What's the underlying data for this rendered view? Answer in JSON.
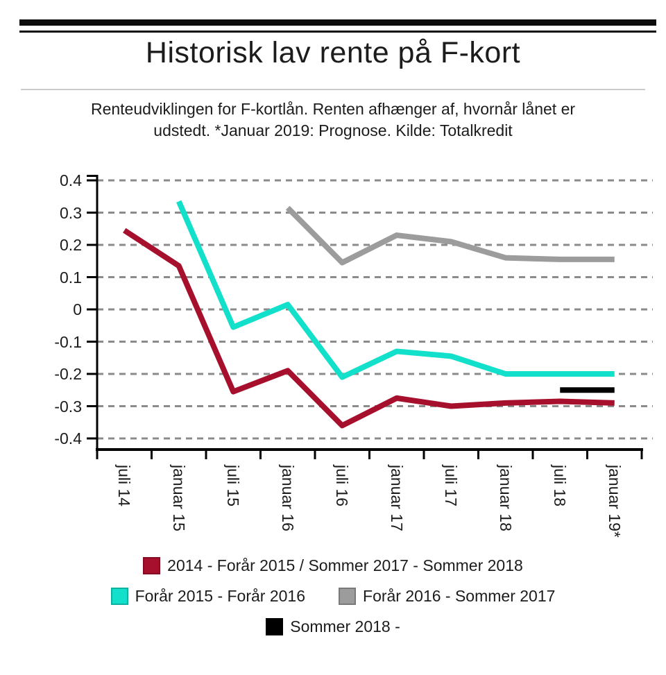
{
  "header": {
    "title": "Historisk lav rente på F-kort",
    "subtitle_line1": "Renteudviklingen for F-kortlån. Renten afhænger af, hvornår lånet er",
    "subtitle_line2": "udstedt. *Januar 2019: Prognose. Kilde: Totalkredit"
  },
  "chart_data": {
    "type": "line",
    "title": "Historisk lav rente på F-kort",
    "categories": [
      "juli 14",
      "januar 15",
      "juli 15",
      "januar 16",
      "juli 16",
      "januar 17",
      "juli 17",
      "januar 18",
      "juli 18",
      "januar 19*"
    ],
    "series": [
      {
        "name": "2014 - Forår 2015 / Sommer 2017 - Sommer 2018",
        "color": "#a6102d",
        "values": [
          0.245,
          0.135,
          -0.255,
          -0.19,
          -0.36,
          -0.275,
          -0.3,
          -0.29,
          -0.285,
          -0.29
        ]
      },
      {
        "name": "Forår 2015 - Forår 2016",
        "color": "#12e0cb",
        "values": [
          null,
          0.335,
          -0.055,
          0.015,
          -0.21,
          -0.13,
          -0.145,
          -0.2,
          -0.2,
          -0.2
        ]
      },
      {
        "name": "Forår 2016 - Sommer 2017",
        "color": "#9c9c9c",
        "values": [
          null,
          null,
          null,
          0.315,
          0.145,
          0.23,
          0.21,
          0.16,
          0.155,
          0.155
        ]
      },
      {
        "name": "Sommer 2018 -",
        "color": "#000000",
        "values": [
          null,
          null,
          null,
          null,
          null,
          null,
          null,
          null,
          -0.25,
          -0.25
        ]
      }
    ],
    "ylim": [
      -0.4,
      0.4
    ],
    "ytick_labels": [
      "0.4",
      "0.3",
      "0.2",
      "0.1",
      "0",
      "-0.1",
      "-0.2",
      "-0.3",
      "-0.4"
    ],
    "grid": true,
    "grid_style": "dashed",
    "xlabel_rotation": 90,
    "legend_position": "bottom",
    "legend_rows": [
      [
        0
      ],
      [
        1,
        2
      ],
      [
        3
      ]
    ]
  },
  "style": {
    "rule_color": "#0d0d0d",
    "divider_color": "#cbcbcb",
    "text_color": "#1c1c1c",
    "grid_color": "#8b8b8b",
    "axis_color": "#000000"
  }
}
